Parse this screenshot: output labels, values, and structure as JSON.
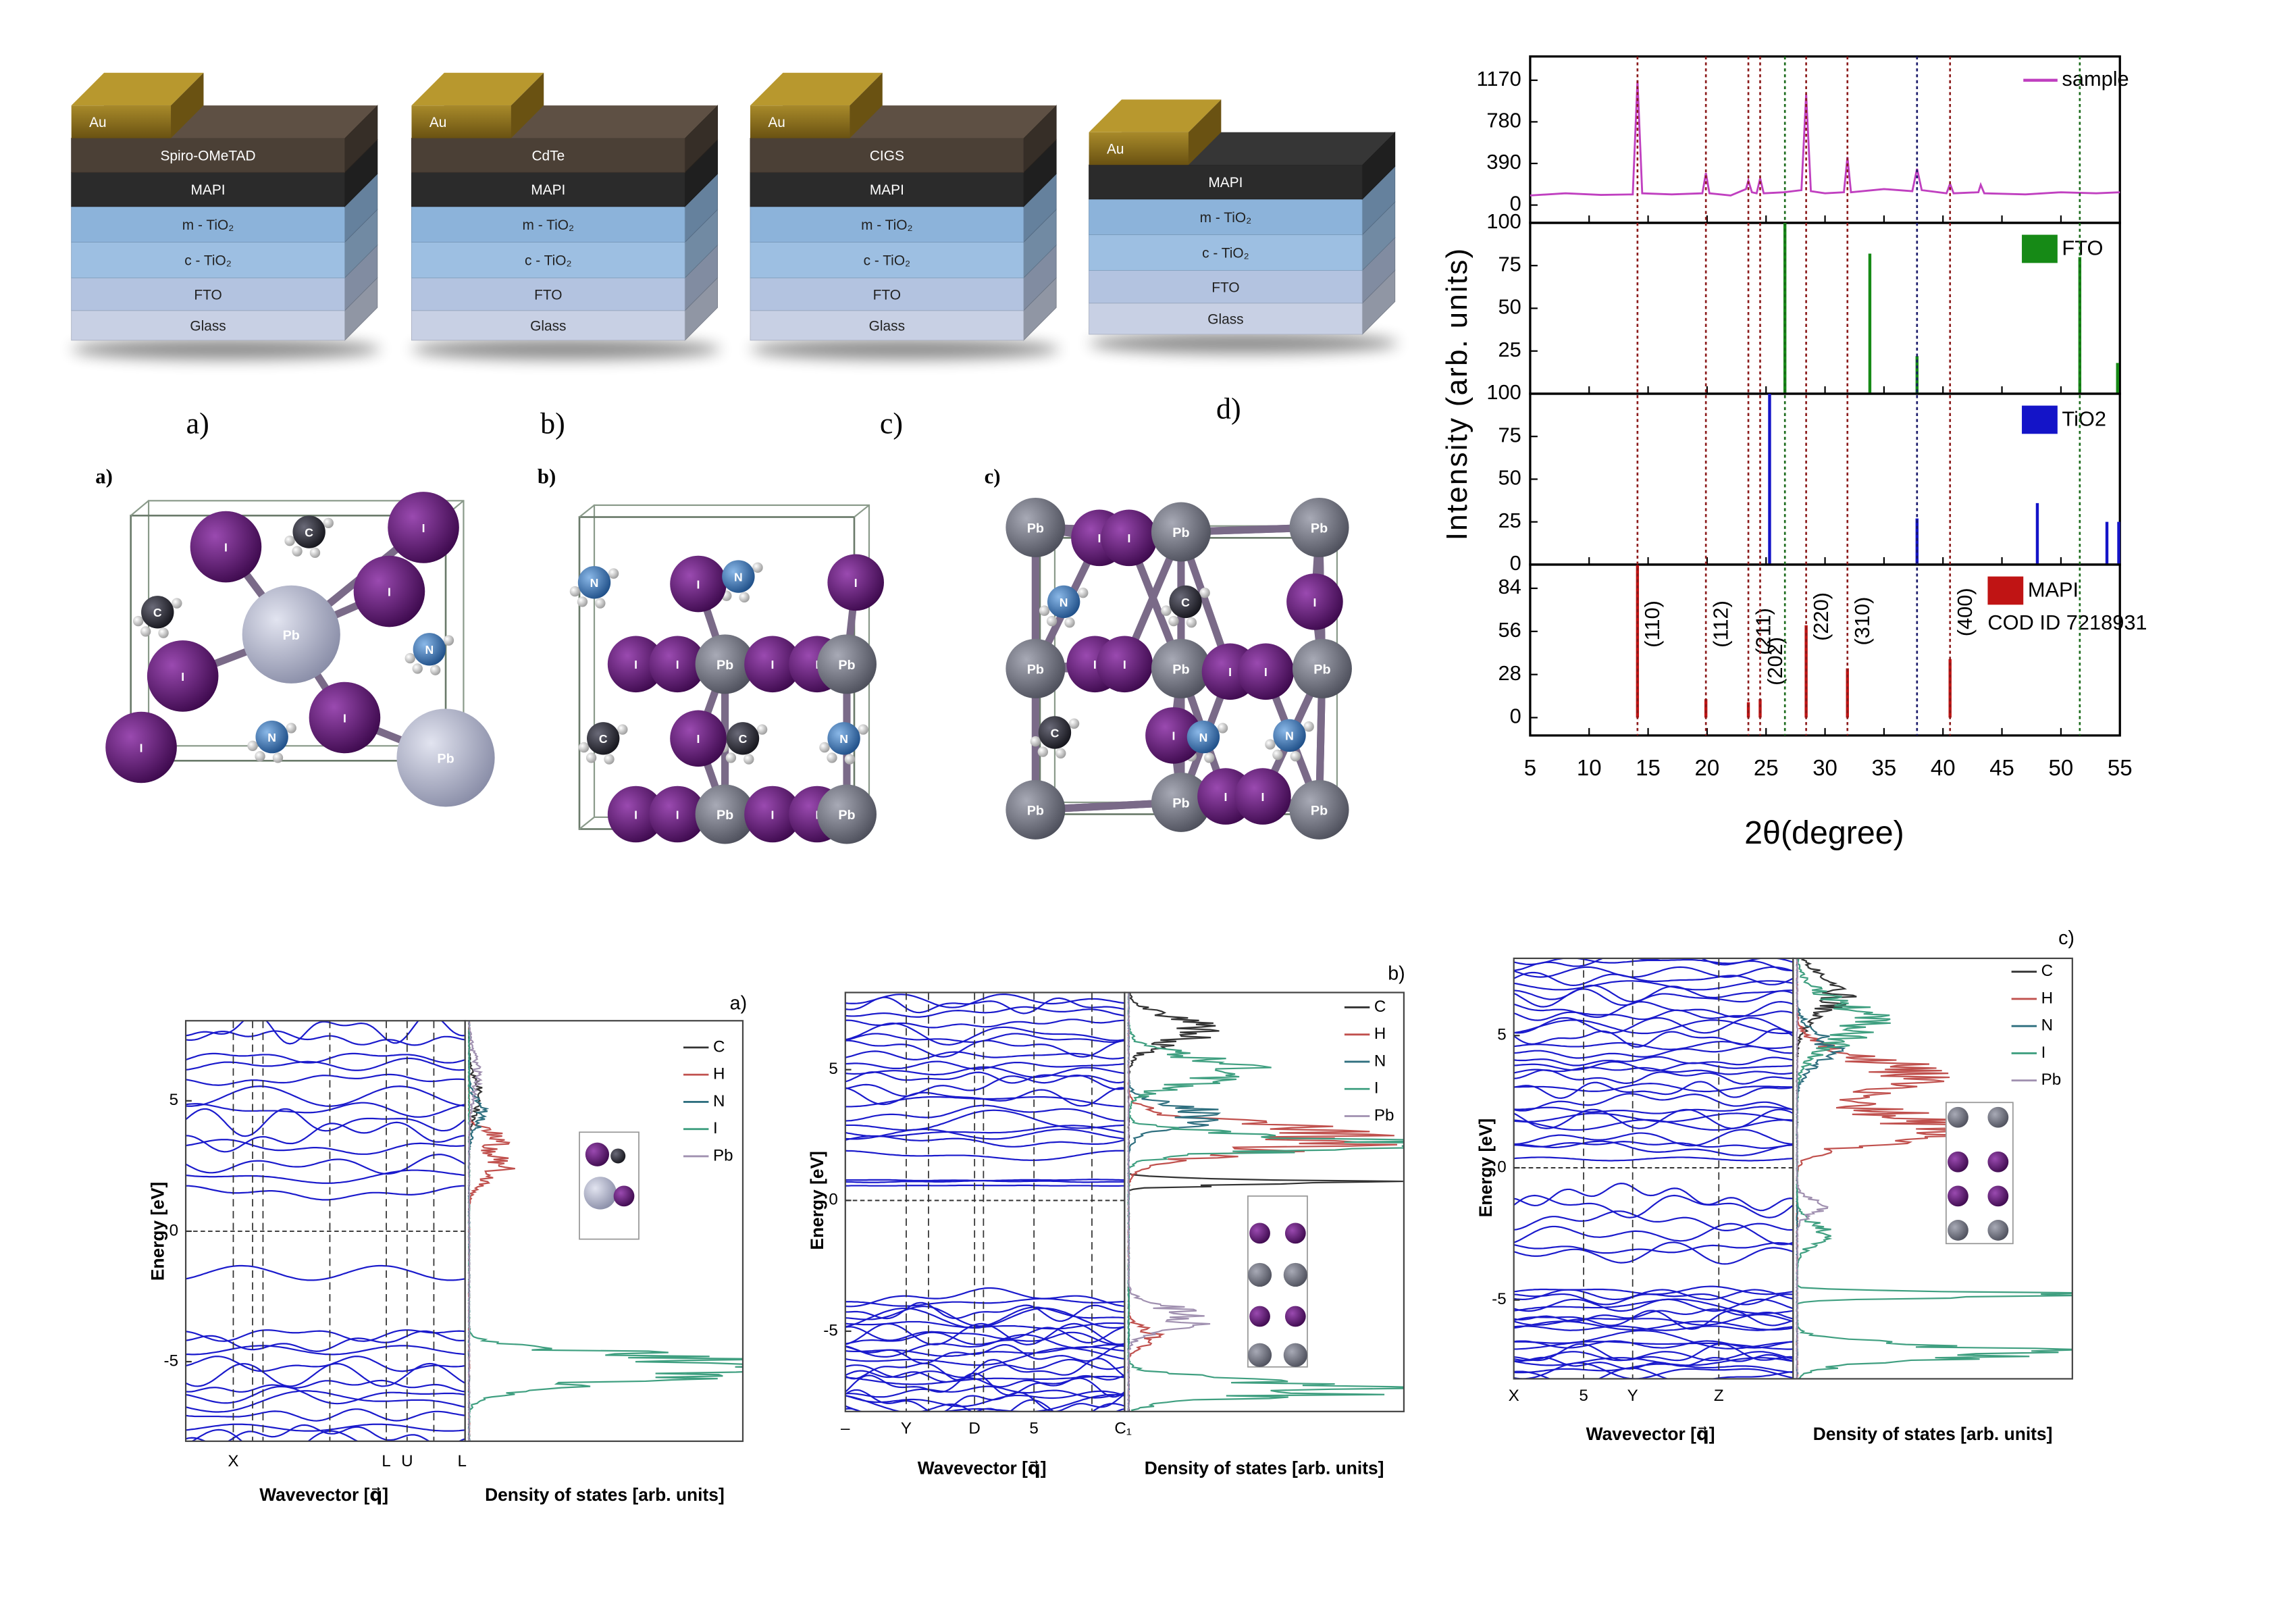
{
  "device_stacks": {
    "panels": [
      {
        "label": "a)",
        "layers": [
          "Au",
          "Spiro-OMeTAD",
          "MAPI",
          "m - TiO₂",
          "c - TiO₂",
          "FTO",
          "Glass"
        ]
      },
      {
        "label": "b)",
        "layers": [
          "Au",
          "CdTe",
          "MAPI",
          "m - TiO₂",
          "c - TiO₂",
          "FTO",
          "Glass"
        ]
      },
      {
        "label": "c)",
        "layers": [
          "Au",
          "CIGS",
          "MAPI",
          "m - TiO₂",
          "c - TiO₂",
          "FTO",
          "Glass"
        ]
      },
      {
        "label": "d)",
        "layers": [
          "Au",
          "MAPI",
          "m - TiO₂",
          "c - TiO₂",
          "FTO",
          "Glass"
        ]
      }
    ]
  },
  "crystal_structures": {
    "panels": [
      {
        "label": "a)",
        "atoms": [
          "I",
          "C",
          "I",
          "I",
          "Pb",
          "C",
          "I",
          "N",
          "I",
          "N",
          "I",
          "Pb"
        ]
      },
      {
        "label": "b)",
        "atoms": [
          "N",
          "I",
          "N",
          "I",
          "I",
          "I",
          "Pb",
          "I",
          "I",
          "Pb",
          "C",
          "I",
          "C",
          "N",
          "I",
          "I",
          "Pb",
          "I",
          "I",
          "Pb"
        ]
      },
      {
        "label": "c)",
        "atoms": [
          "Pb",
          "I",
          "I",
          "Pb",
          "Pb",
          "N",
          "C",
          "I",
          "Pb",
          "I",
          "I",
          "Pb",
          "I",
          "I",
          "Pb",
          "C",
          "I",
          "N",
          "N",
          "Pb",
          "Pb",
          "I",
          "I",
          "Pb"
        ]
      }
    ]
  },
  "xrd": {
    "y_label": "Intensity (arb. units)",
    "x_label": "2θ(degree)",
    "xlim": [
      5,
      55
    ],
    "xticks": [
      5,
      10,
      15,
      20,
      25,
      30,
      35,
      40,
      45,
      50,
      55
    ],
    "panels": [
      {
        "type": "line",
        "legend": "sample",
        "color": "#c040c0",
        "ylim": [
          -167,
          1393
        ],
        "yticks": [
          0,
          390,
          780,
          1170
        ],
        "x": [
          5,
          8,
          11,
          13.7,
          14.1,
          14.5,
          17,
          19.6,
          19.9,
          20.2,
          22,
          23.3,
          23.5,
          23.8,
          24.2,
          24.5,
          24.8,
          26.5,
          28.0,
          28.4,
          28.8,
          30,
          31.6,
          31.9,
          32.2,
          35,
          37.4,
          37.8,
          38.2,
          40.3,
          40.6,
          40.9,
          43,
          43.2,
          43.5,
          47,
          50,
          53,
          55
        ],
        "values": [
          90,
          110,
          95,
          100,
          1170,
          110,
          100,
          110,
          300,
          110,
          90,
          150,
          230,
          120,
          110,
          250,
          110,
          120,
          140,
          1040,
          130,
          110,
          120,
          450,
          120,
          150,
          130,
          340,
          140,
          110,
          200,
          110,
          120,
          190,
          110,
          100,
          120,
          110,
          120
        ]
      },
      {
        "type": "bar",
        "legend": "FTO",
        "color": "#168a16",
        "ylim": [
          0,
          100
        ],
        "yticks": [
          25,
          50,
          75,
          100
        ],
        "x": [
          26.6,
          33.8,
          37.8,
          51.6,
          54.8
        ],
        "values": [
          100,
          82,
          22,
          80,
          18
        ]
      },
      {
        "type": "bar",
        "legend": "TiO2",
        "color": "#1414c8",
        "ylim": [
          0,
          100
        ],
        "yticks": [
          0,
          25,
          50,
          75,
          100
        ],
        "x": [
          25.3,
          37.8,
          48.0,
          53.9,
          54.9
        ],
        "values": [
          100,
          27,
          36,
          25,
          25
        ]
      },
      {
        "type": "bar",
        "legend": "MAPI",
        "legend_note": "COD ID 7218931",
        "color": "#c01414",
        "ylim": [
          -11.6,
          99.4
        ],
        "yticks": [
          0,
          28,
          56,
          84
        ],
        "x": [
          14.1,
          19.9,
          23.5,
          24.5,
          28.4,
          31.9,
          40.6
        ],
        "values": [
          99,
          12,
          10,
          12,
          60,
          32,
          38
        ],
        "peak_labels": [
          "(110)",
          "(112)",
          "(211)",
          "(202)",
          "(220)",
          "(310)",
          "(400)"
        ]
      }
    ],
    "guide_lines": {
      "x": [
        14.1,
        19.9,
        23.5,
        24.5,
        26.6,
        28.4,
        31.9,
        37.8,
        40.6,
        51.6
      ],
      "colors": [
        "#8b1a1a",
        "#8b1a1a",
        "#8b1a1a",
        "#8b1a1a",
        "#1a6a1a",
        "#8b1a1a",
        "#8b1a1a",
        "#1a1a6a",
        "#8b1a1a",
        "#1a6a1a"
      ]
    }
  },
  "band_structures": {
    "panels": [
      {
        "label": "a)",
        "y_label": "Energy [eV]",
        "x_label": "Wavevector [q⃗]",
        "dos_label": "Density of states [arb. units]",
        "legend": [
          "C",
          "H",
          "N",
          "I",
          "Pb"
        ],
        "ylim": [
          -8.05,
          8.07
        ],
        "yticks": [
          -5,
          0,
          5
        ],
        "kpoints": [
          "X",
          "L",
          "U",
          "L"
        ]
      },
      {
        "label": "b)",
        "y_label": "Energy [eV]",
        "x_label": "Wavevector [q⃗]",
        "dos_label": "Density of states [arb. units]",
        "legend": [
          "C",
          "H",
          "N",
          "I",
          "Pb"
        ],
        "ylim": [
          -8.07,
          7.95
        ],
        "yticks": [
          -5,
          0,
          5
        ],
        "kpoints": [
          "–",
          "Y",
          "D",
          "5",
          "C₁"
        ]
      },
      {
        "label": "c)",
        "y_label": "Energy [eV]",
        "x_label": "Wavevector [q⃗]",
        "dos_label": "Density of states [arb. units]",
        "legend": [
          "C",
          "H",
          "N",
          "I",
          "Pb"
        ],
        "ylim": [
          -7.98,
          7.92
        ],
        "yticks": [
          -5,
          0,
          5
        ],
        "kpoints": [
          "X",
          "5",
          "Y",
          "Z"
        ]
      }
    ]
  }
}
